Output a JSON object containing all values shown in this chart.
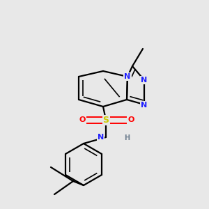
{
  "bg": "#e8e8e8",
  "C": "#000000",
  "N": "#2020ff",
  "S": "#cccc00",
  "O": "#ff0000",
  "H": "#708090",
  "lw": 1.6,
  "lw2": 1.2
}
